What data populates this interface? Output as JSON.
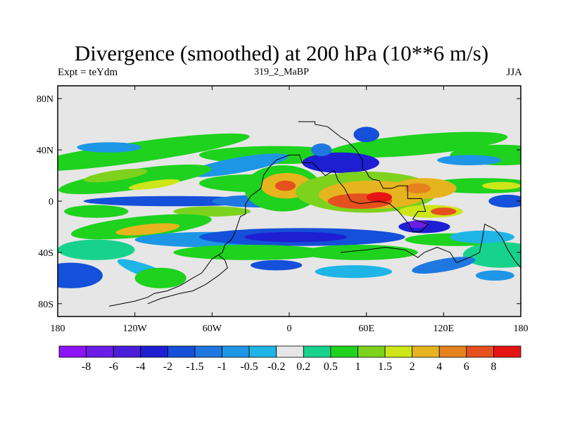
{
  "chart_data": {
    "type": "heatmap",
    "title": "Divergence (smoothed) at 200 hPa (10**6 m/s)",
    "subtitle_left": "Expt = teYdm",
    "subtitle_center": "319_2_MaBP",
    "subtitle_right": "JJA",
    "x_ticks": [
      "180",
      "120W",
      "60W",
      "0",
      "60E",
      "120E",
      "180"
    ],
    "y_ticks": [
      "80N",
      "40N",
      "0",
      "40S",
      "80S"
    ],
    "xlim": [
      -180,
      180
    ],
    "ylim": [
      -90,
      90
    ],
    "levels": [
      "-8",
      "-6",
      "-4",
      "-2",
      "-1.5",
      "-1",
      "-0.5",
      "-0.2",
      "0.2",
      "0.5",
      "1",
      "1.5",
      "2",
      "4",
      "6",
      "8"
    ],
    "colors": [
      "#8c14f5",
      "#6c1de6",
      "#4b1ed9",
      "#1e1ed2",
      "#1450d9",
      "#1e78e0",
      "#1e96e6",
      "#1eb4e6",
      "#e6e6e6",
      "#17d28c",
      "#1ed21e",
      "#7dd21e",
      "#cde619",
      "#e6b41e",
      "#e6821e",
      "#e6501e",
      "#e61414"
    ]
  }
}
